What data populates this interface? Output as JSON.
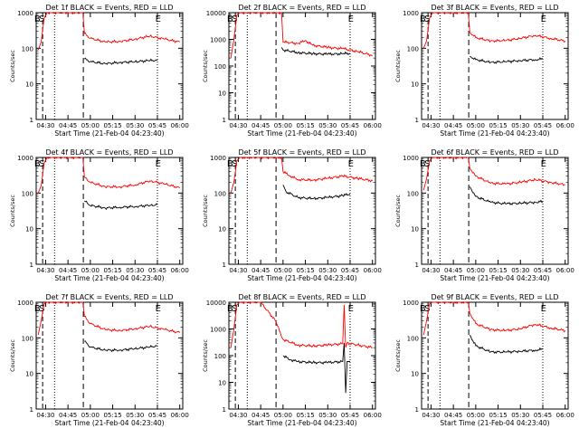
{
  "colors": {
    "events": "#000000",
    "lld": "#ff0000",
    "axes": "#000000",
    "background": "#ffffff"
  },
  "chart_data": [
    {
      "type": "line",
      "title": "Det 1f BLACK = Events, RED = LLD",
      "xlabel": "Start Time (21-Feb-04 04:23:40)",
      "ylabel": "Counts/sec",
      "x_ticks": [
        "04:30",
        "04:45",
        "05:00",
        "05:15",
        "05:30",
        "05:45",
        "06:00"
      ],
      "y_ticks": [
        "1",
        "10",
        "100",
        "1000"
      ],
      "yscale": "log",
      "ylim": [
        1,
        1000
      ],
      "markers": [
        "B",
        "S",
        "E"
      ],
      "series": [
        {
          "name": "Events",
          "color": "#000000",
          "x": [
            "04:56",
            "05:00",
            "05:10",
            "05:20",
            "05:30",
            "05:40",
            "05:45"
          ],
          "y": [
            50,
            42,
            37,
            40,
            42,
            45,
            46
          ]
        },
        {
          "name": "LLD",
          "color": "#ff0000",
          "x": [
            "04:25",
            "04:27",
            "04:29",
            "04:31",
            "04:55",
            "04:56",
            "05:00",
            "05:10",
            "05:20",
            "05:30",
            "05:40",
            "05:50",
            "06:00"
          ],
          "y": [
            90,
            150,
            700,
            1000,
            1000,
            260,
            190,
            150,
            155,
            180,
            220,
            180,
            150
          ]
        }
      ]
    },
    {
      "type": "line",
      "title": "Det 2f BLACK = Events, RED = LLD",
      "xlabel": "Start Time (21-Feb-04 04:23:40)",
      "ylabel": "Counts/sec",
      "x_ticks": [
        "04:30",
        "04:45",
        "05:00",
        "05:15",
        "05:30",
        "05:45",
        "06:00"
      ],
      "y_ticks": [
        "1",
        "10",
        "100",
        "1000",
        "10000"
      ],
      "yscale": "log",
      "ylim": [
        1,
        10000
      ],
      "markers": [
        "B",
        "S",
        "E"
      ],
      "series": [
        {
          "name": "Events",
          "color": "#000000",
          "x": [
            "04:59",
            "05:00",
            "05:10",
            "05:20",
            "05:30",
            "05:40",
            "05:45"
          ],
          "y": [
            500,
            400,
            320,
            290,
            280,
            290,
            300
          ]
        },
        {
          "name": "LLD",
          "color": "#ff0000",
          "x": [
            "04:25",
            "04:27",
            "04:29",
            "04:31",
            "04:59",
            "05:00",
            "05:10",
            "05:15",
            "05:20",
            "05:30",
            "05:40",
            "05:50",
            "06:00"
          ],
          "y": [
            200,
            1000,
            8000,
            10000,
            10000,
            800,
            700,
            900,
            600,
            500,
            450,
            350,
            250
          ]
        }
      ]
    },
    {
      "type": "line",
      "title": "Det 3f BLACK = Events, RED = LLD",
      "xlabel": "Start Time (21-Feb-04 04:23:40)",
      "ylabel": "Counts/sec",
      "x_ticks": [
        "04:30",
        "04:45",
        "05:00",
        "05:15",
        "05:30",
        "05:45",
        "06:00"
      ],
      "y_ticks": [
        "1",
        "10",
        "100",
        "1000"
      ],
      "yscale": "log",
      "ylim": [
        1,
        1000
      ],
      "markers": [
        "B",
        "S",
        "E"
      ],
      "series": [
        {
          "name": "Events",
          "color": "#000000",
          "x": [
            "04:56",
            "05:00",
            "05:10",
            "05:20",
            "05:30",
            "05:40",
            "05:45"
          ],
          "y": [
            60,
            48,
            40,
            42,
            45,
            48,
            50
          ]
        },
        {
          "name": "LLD",
          "color": "#ff0000",
          "x": [
            "04:25",
            "04:27",
            "04:29",
            "04:31",
            "04:55",
            "04:56",
            "05:00",
            "05:10",
            "05:20",
            "05:30",
            "05:40",
            "05:50",
            "06:00"
          ],
          "y": [
            100,
            160,
            700,
            1000,
            1000,
            280,
            200,
            160,
            165,
            190,
            230,
            190,
            160
          ]
        }
      ]
    },
    {
      "type": "line",
      "title": "Det 4f BLACK = Events, RED = LLD",
      "xlabel": "Start Time (21-Feb-04 04:23:40)",
      "ylabel": "Counts/sec",
      "x_ticks": [
        "04:30",
        "04:45",
        "05:00",
        "05:15",
        "05:30",
        "05:45",
        "06:00"
      ],
      "y_ticks": [
        "1",
        "10",
        "100",
        "1000"
      ],
      "yscale": "log",
      "ylim": [
        1,
        1000
      ],
      "markers": [
        "B",
        "S",
        "E"
      ],
      "series": [
        {
          "name": "Events",
          "color": "#000000",
          "x": [
            "04:56",
            "05:00",
            "05:10",
            "05:20",
            "05:30",
            "05:40",
            "05:45"
          ],
          "y": [
            60,
            45,
            38,
            40,
            42,
            45,
            47
          ]
        },
        {
          "name": "LLD",
          "color": "#ff0000",
          "x": [
            "04:25",
            "04:27",
            "04:29",
            "04:31",
            "04:55",
            "04:56",
            "05:00",
            "05:10",
            "05:20",
            "05:30",
            "05:40",
            "05:50",
            "06:00"
          ],
          "y": [
            100,
            160,
            700,
            1000,
            1000,
            280,
            200,
            150,
            150,
            170,
            220,
            180,
            140
          ]
        }
      ]
    },
    {
      "type": "line",
      "title": "Det 5f BLACK = Events, RED = LLD",
      "xlabel": "Start Time (21-Feb-04 04:23:40)",
      "ylabel": "Counts/sec",
      "x_ticks": [
        "04:30",
        "04:45",
        "05:00",
        "05:15",
        "05:30",
        "05:45",
        "06:00"
      ],
      "y_ticks": [
        "1",
        "10",
        "100",
        "1000"
      ],
      "yscale": "log",
      "ylim": [
        1,
        1000
      ],
      "markers": [
        "B",
        "S",
        "E"
      ],
      "series": [
        {
          "name": "Events",
          "color": "#000000",
          "x": [
            "05:00",
            "05:02",
            "05:10",
            "05:20",
            "05:30",
            "05:40",
            "05:45"
          ],
          "y": [
            170,
            110,
            75,
            70,
            75,
            85,
            95
          ]
        },
        {
          "name": "LLD",
          "color": "#ff0000",
          "x": [
            "04:25",
            "04:27",
            "04:29",
            "04:31",
            "04:59",
            "05:00",
            "05:05",
            "05:10",
            "05:20",
            "05:30",
            "05:40",
            "05:50",
            "06:00"
          ],
          "y": [
            100,
            200,
            800,
            1000,
            1000,
            400,
            300,
            240,
            230,
            260,
            300,
            260,
            220
          ]
        }
      ]
    },
    {
      "type": "line",
      "title": "Det 6f BLACK = Events, RED = LLD",
      "xlabel": "Start Time (21-Feb-04 04:23:40)",
      "ylabel": "Counts/sec",
      "x_ticks": [
        "04:30",
        "04:45",
        "05:00",
        "05:15",
        "05:30",
        "05:45",
        "06:00"
      ],
      "y_ticks": [
        "1",
        "10",
        "100",
        "1000"
      ],
      "yscale": "log",
      "ylim": [
        1,
        1000
      ],
      "markers": [
        "B",
        "S",
        "E"
      ],
      "series": [
        {
          "name": "Events",
          "color": "#000000",
          "x": [
            "04:56",
            "05:00",
            "05:10",
            "05:20",
            "05:30",
            "05:40",
            "05:45"
          ],
          "y": [
            150,
            80,
            55,
            50,
            52,
            55,
            58
          ]
        },
        {
          "name": "LLD",
          "color": "#ff0000",
          "x": [
            "04:25",
            "04:27",
            "04:29",
            "04:31",
            "04:55",
            "04:56",
            "05:00",
            "05:10",
            "05:20",
            "05:30",
            "05:40",
            "05:50",
            "06:00"
          ],
          "y": [
            120,
            250,
            800,
            1000,
            1000,
            500,
            300,
            190,
            180,
            200,
            240,
            200,
            170
          ]
        }
      ]
    },
    {
      "type": "line",
      "title": "Det 7f BLACK = Events, RED = LLD",
      "xlabel": "Start Time (21-Feb-04 04:23:40)",
      "ylabel": "Counts/sec",
      "x_ticks": [
        "04:30",
        "04:45",
        "05:00",
        "05:15",
        "05:30",
        "05:45",
        "06:00"
      ],
      "y_ticks": [
        "1",
        "10",
        "100",
        "1000"
      ],
      "yscale": "log",
      "ylim": [
        1,
        1000
      ],
      "markers": [
        "B",
        "S",
        "E"
      ],
      "series": [
        {
          "name": "Events",
          "color": "#000000",
          "x": [
            "04:56",
            "05:00",
            "05:10",
            "05:20",
            "05:30",
            "05:40",
            "05:45"
          ],
          "y": [
            80,
            55,
            45,
            45,
            50,
            55,
            60
          ]
        },
        {
          "name": "LLD",
          "color": "#ff0000",
          "x": [
            "04:25",
            "04:27",
            "04:29",
            "04:31",
            "04:55",
            "04:56",
            "05:00",
            "05:10",
            "05:20",
            "05:30",
            "05:40",
            "05:50",
            "06:00"
          ],
          "y": [
            120,
            300,
            900,
            1000,
            1000,
            400,
            250,
            170,
            160,
            180,
            210,
            170,
            140
          ]
        }
      ]
    },
    {
      "type": "line",
      "title": "Det 8f BLACK = Events, RED = LLD",
      "xlabel": "Start Time (21-Feb-04 04:23:40)",
      "ylabel": "Counts/sec",
      "x_ticks": [
        "04:30",
        "04:45",
        "05:00",
        "05:15",
        "05:30",
        "05:45",
        "06:00"
      ],
      "y_ticks": [
        "1",
        "10",
        "100",
        "1000",
        "10000"
      ],
      "yscale": "log",
      "ylim": [
        1,
        10000
      ],
      "markers": [
        "B",
        "S",
        "E"
      ],
      "series": [
        {
          "name": "Events",
          "color": "#000000",
          "x": [
            "05:00",
            "05:05",
            "05:10",
            "05:20",
            "05:30",
            "05:40",
            "05:41",
            "05:42",
            "05:43",
            "05:45"
          ],
          "y": [
            100,
            70,
            60,
            55,
            55,
            60,
            300,
            4,
            60,
            60
          ]
        },
        {
          "name": "LLD",
          "color": "#ff0000",
          "x": [
            "04:25",
            "04:27",
            "04:29",
            "04:31",
            "04:45",
            "04:55",
            "05:00",
            "05:10",
            "05:20",
            "05:30",
            "05:40",
            "05:41",
            "05:42",
            "05:43",
            "05:50",
            "06:00"
          ],
          "y": [
            200,
            1000,
            8000,
            10000,
            10000,
            2000,
            400,
            250,
            230,
            250,
            280,
            8000,
            200,
            300,
            250,
            200
          ]
        }
      ]
    },
    {
      "type": "line",
      "title": "Det 9f BLACK = Events, RED = LLD",
      "xlabel": "Start Time (21-Feb-04 04:23:40)",
      "ylabel": "Counts/sec",
      "x_ticks": [
        "04:30",
        "04:45",
        "05:00",
        "05:15",
        "05:30",
        "05:45",
        "06:00"
      ],
      "y_ticks": [
        "1",
        "10",
        "100",
        "1000"
      ],
      "yscale": "log",
      "ylim": [
        1,
        1000
      ],
      "markers": [
        "B",
        "S",
        "E"
      ],
      "series": [
        {
          "name": "Events",
          "color": "#000000",
          "x": [
            "04:56",
            "05:00",
            "05:10",
            "05:20",
            "05:30",
            "05:40",
            "05:45"
          ],
          "y": [
            120,
            60,
            40,
            40,
            42,
            45,
            48
          ]
        },
        {
          "name": "LLD",
          "color": "#ff0000",
          "x": [
            "04:25",
            "04:27",
            "04:29",
            "04:31",
            "04:55",
            "04:56",
            "05:00",
            "05:10",
            "05:20",
            "05:30",
            "05:40",
            "05:50",
            "06:00"
          ],
          "y": [
            120,
            300,
            900,
            1000,
            1000,
            500,
            250,
            170,
            160,
            180,
            240,
            190,
            160
          ]
        }
      ]
    }
  ]
}
